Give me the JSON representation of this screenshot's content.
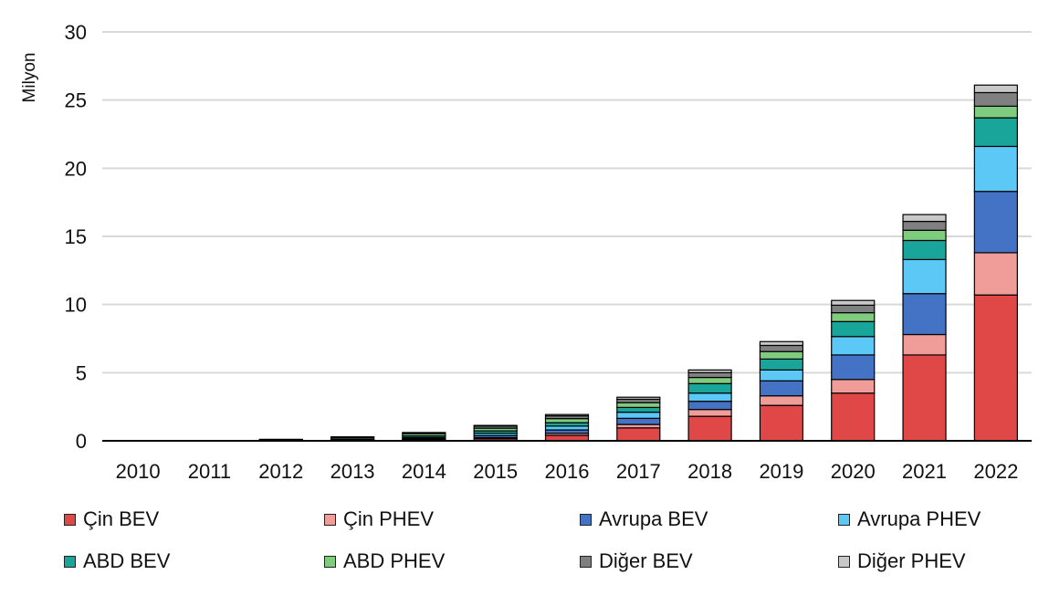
{
  "chart_data": {
    "type": "bar",
    "stacked": true,
    "title": "",
    "xlabel": "",
    "ylabel": "Milyon",
    "ylim": [
      0,
      30
    ],
    "yticks": [
      0,
      5,
      10,
      15,
      20,
      25,
      30
    ],
    "grid": true,
    "legend_position": "bottom",
    "categories": [
      "2010",
      "2011",
      "2012",
      "2013",
      "2014",
      "2015",
      "2016",
      "2017",
      "2018",
      "2019",
      "2020",
      "2021",
      "2022"
    ],
    "series": [
      {
        "name": "Çin BEV",
        "color": "#e04848",
        "values": [
          0.0,
          0.0,
          0.01,
          0.02,
          0.06,
          0.15,
          0.4,
          0.95,
          1.8,
          2.6,
          3.5,
          6.3,
          10.7
        ]
      },
      {
        "name": "Çin PHEV",
        "color": "#f09c98",
        "values": [
          0.0,
          0.0,
          0.0,
          0.01,
          0.03,
          0.08,
          0.15,
          0.25,
          0.5,
          0.7,
          1.0,
          1.5,
          3.1
        ]
      },
      {
        "name": "Avrupa BEV",
        "color": "#4472c4",
        "values": [
          0.0,
          0.01,
          0.02,
          0.04,
          0.08,
          0.15,
          0.25,
          0.45,
          0.6,
          1.1,
          1.8,
          3.0,
          4.5
        ]
      },
      {
        "name": "Avrupa PHEV",
        "color": "#5bc8f5",
        "values": [
          0.0,
          0.0,
          0.01,
          0.03,
          0.07,
          0.17,
          0.28,
          0.45,
          0.6,
          0.8,
          1.35,
          2.5,
          3.3
        ]
      },
      {
        "name": "ABD BEV",
        "color": "#1aa59a",
        "values": [
          0.0,
          0.0,
          0.02,
          0.04,
          0.12,
          0.18,
          0.25,
          0.35,
          0.7,
          0.8,
          1.1,
          1.4,
          2.1
        ]
      },
      {
        "name": "ABD PHEV",
        "color": "#7fcc7f",
        "values": [
          0.0,
          0.0,
          0.03,
          0.1,
          0.15,
          0.2,
          0.3,
          0.35,
          0.45,
          0.55,
          0.65,
          0.75,
          0.85
        ]
      },
      {
        "name": "Diğer BEV",
        "color": "#808080",
        "values": [
          0.0,
          0.01,
          0.02,
          0.04,
          0.08,
          0.15,
          0.2,
          0.25,
          0.35,
          0.45,
          0.55,
          0.65,
          1.0
        ]
      },
      {
        "name": "Diğer PHEV",
        "color": "#c8c8c8",
        "values": [
          0.0,
          0.0,
          0.0,
          0.01,
          0.02,
          0.05,
          0.1,
          0.15,
          0.2,
          0.28,
          0.35,
          0.5,
          0.55
        ]
      }
    ]
  }
}
